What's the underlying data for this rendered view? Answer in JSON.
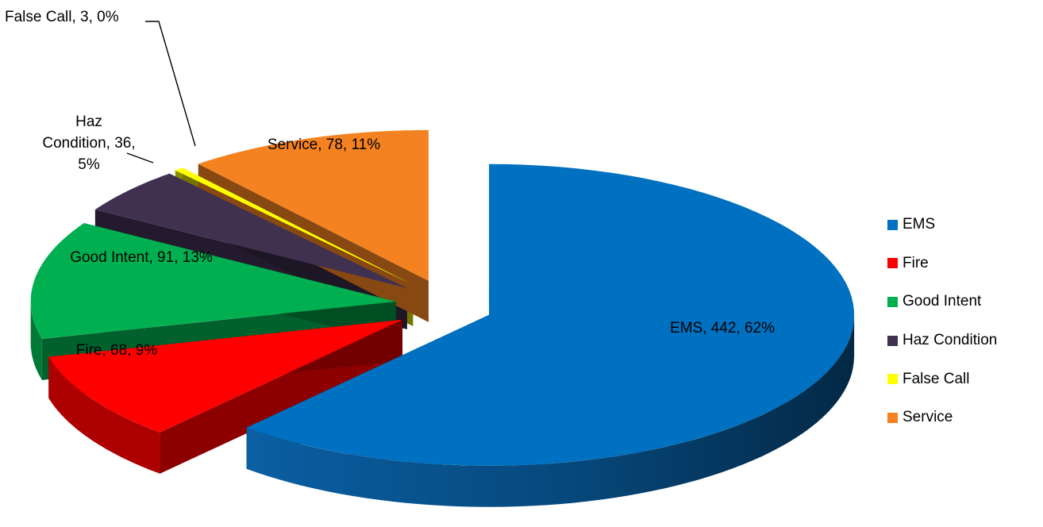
{
  "chart_data": {
    "type": "pie",
    "title": "",
    "categories": [
      "EMS",
      "Fire",
      "Good Intent",
      "Haz Condition",
      "False Call",
      "Service"
    ],
    "values": [
      442,
      68,
      91,
      36,
      3,
      78
    ],
    "percent_labels": [
      "62%",
      "9%",
      "13%",
      "5%",
      "0%",
      "11%"
    ],
    "colors": [
      "#0070C0",
      "#FF0000",
      "#00B050",
      "#403151",
      "#FFFF00",
      "#F58220"
    ],
    "data_labels": [
      [
        "EMS, 442, 62%"
      ],
      [
        "Fire, 68, 9%"
      ],
      [
        "Good Intent, 91, 13%"
      ],
      [
        "Haz",
        "Condition, 36,",
        "5%"
      ],
      [
        "False Call, 3, 0%"
      ],
      [
        "Service, 78, 11%"
      ]
    ],
    "style": "3d-exploded",
    "legend_position": "right"
  }
}
